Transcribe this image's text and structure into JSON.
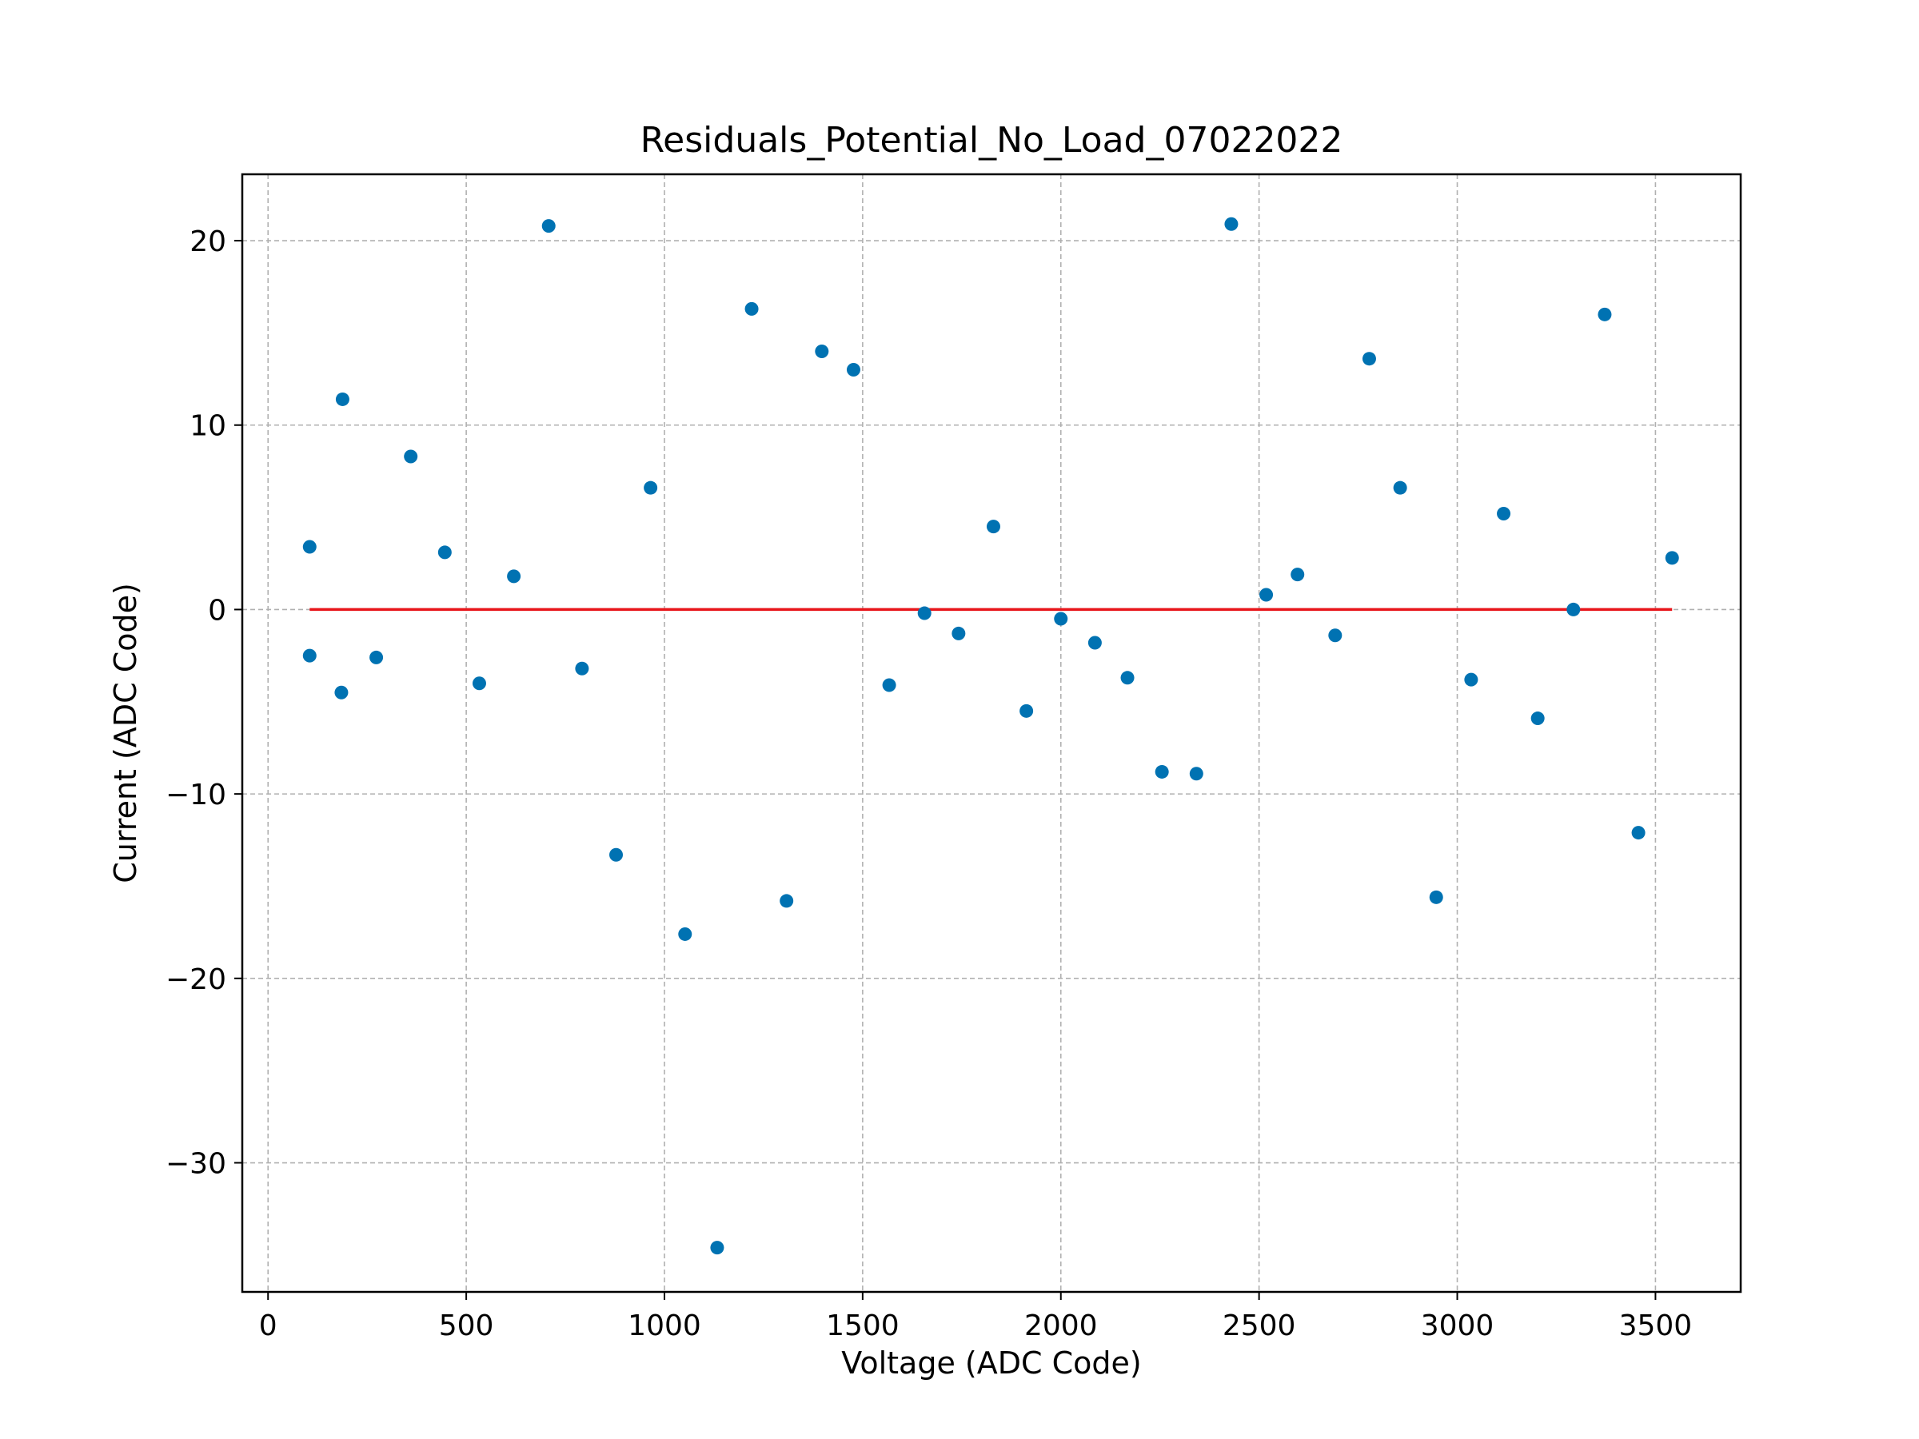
{
  "chart_data": {
    "type": "scatter",
    "title": "Residuals_Potential_No_Load_07022022",
    "xlabel": "Voltage (ADC Code)",
    "ylabel": "Current (ADC Code)",
    "xlim": [
      -65,
      3715
    ],
    "ylim": [
      -37,
      23.6
    ],
    "xticks": [
      0,
      500,
      1000,
      1500,
      2000,
      2500,
      3000,
      3500
    ],
    "yticks": [
      -30,
      -20,
      -10,
      0,
      10,
      20
    ],
    "xtick_labels": [
      "0",
      "500",
      "1000",
      "1500",
      "2000",
      "2500",
      "3000",
      "3500"
    ],
    "ytick_labels": [
      "−30",
      "−20",
      "−10",
      "0",
      "10",
      "20"
    ],
    "grid": true,
    "point_color": "#0072b2",
    "line_color": "#e8161b",
    "series": [
      {
        "type": "scatter",
        "x": [
          105,
          105,
          185,
          188,
          273,
          360,
          446,
          533,
          620,
          708,
          792,
          878,
          965,
          1052,
          1133,
          1220,
          1308,
          1397,
          1477,
          1567,
          1656,
          1742,
          1830,
          1913,
          2000,
          2086,
          2168,
          2255,
          2342,
          2430,
          2518,
          2597,
          2692,
          2778,
          2856,
          2947,
          3035,
          3117,
          3203,
          3293,
          3372,
          3457,
          3542
        ],
        "y": [
          3.4,
          -2.5,
          -4.5,
          11.4,
          -2.6,
          8.3,
          3.1,
          -4.0,
          1.8,
          20.8,
          -3.2,
          -13.3,
          6.6,
          -17.6,
          -34.6,
          16.3,
          -15.8,
          14.0,
          13.0,
          -4.1,
          -0.2,
          -1.3,
          4.5,
          -5.5,
          -0.5,
          -1.8,
          -3.7,
          -8.8,
          -8.9,
          20.9,
          0.8,
          1.9,
          -1.4,
          13.6,
          6.6,
          -15.6,
          -3.8,
          5.2,
          -5.9,
          0.0,
          16.0,
          -12.1,
          2.8
        ]
      },
      {
        "type": "line",
        "x": [
          105,
          3542
        ],
        "y": [
          0,
          0
        ]
      }
    ]
  }
}
